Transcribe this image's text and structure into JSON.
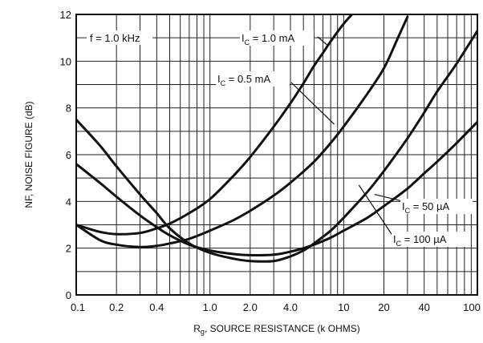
{
  "chart_data": {
    "type": "line",
    "title": "",
    "annotation": "f = 1.0 kHz",
    "xlabel": "Rg, SOURCE RESISTANCE (k OHMS)",
    "ylabel": "NF, NOISE FIGURE (dB)",
    "x_scale": "log",
    "xlim": [
      0.1,
      100
    ],
    "ylim": [
      0,
      12
    ],
    "grid": true,
    "x_tick_values": [
      0.1,
      0.2,
      0.4,
      1.0,
      2.0,
      4.0,
      10,
      20,
      40,
      100
    ],
    "x_tick_labels": [
      "0.1",
      "0.2",
      "0.4",
      "1.0",
      "2.0",
      "4.0",
      "10",
      "20",
      "40",
      "100"
    ],
    "y_tick_values": [
      0,
      2,
      4,
      6,
      8,
      10,
      12
    ],
    "y_tick_labels": [
      "0",
      "2",
      "4",
      "6",
      "8",
      "10",
      "12"
    ],
    "series": [
      {
        "name": "IC = 1.0 mA",
        "x": [
          0.1,
          0.15,
          0.2,
          0.3,
          0.4,
          0.5,
          0.7,
          1.0,
          1.5,
          2.0,
          3.0,
          4.0,
          5.0,
          6.0,
          7.0,
          8.0,
          10.0,
          12.0
        ],
        "y": [
          3.0,
          2.7,
          2.6,
          2.65,
          2.85,
          3.05,
          3.5,
          4.1,
          5.1,
          5.9,
          7.2,
          8.2,
          9.05,
          9.8,
          10.35,
          10.85,
          11.6,
          12.1
        ]
      },
      {
        "name": "IC = 0.5 mA",
        "x": [
          0.1,
          0.15,
          0.2,
          0.3,
          0.4,
          0.5,
          0.7,
          1.0,
          1.5,
          2.0,
          3.0,
          4.0,
          6.0,
          8.0,
          10.0,
          15.0,
          20.0,
          25.0,
          30.0
        ],
        "y": [
          3.0,
          2.35,
          2.15,
          2.05,
          2.1,
          2.2,
          2.4,
          2.75,
          3.2,
          3.6,
          4.25,
          4.8,
          5.7,
          6.5,
          7.2,
          8.6,
          9.7,
          10.9,
          11.9
        ]
      },
      {
        "name": "IC = 50 µA",
        "x": [
          0.1,
          0.15,
          0.2,
          0.3,
          0.4,
          0.5,
          0.7,
          1.0,
          1.5,
          2.0,
          3.0,
          4.0,
          5.0,
          6.0,
          8.0,
          10.0,
          15.0,
          20.0,
          30.0,
          40.0,
          50.0,
          70.0,
          100.0
        ],
        "y": [
          5.6,
          4.8,
          4.2,
          3.4,
          2.9,
          2.55,
          2.15,
          1.9,
          1.75,
          1.7,
          1.72,
          1.85,
          2.0,
          2.15,
          2.45,
          2.75,
          3.3,
          3.8,
          4.55,
          5.2,
          5.7,
          6.5,
          7.4
        ]
      },
      {
        "name": "IC = 100 µA",
        "x": [
          0.1,
          0.15,
          0.2,
          0.3,
          0.4,
          0.5,
          0.7,
          1.0,
          1.5,
          2.0,
          3.0,
          4.0,
          5.0,
          6.0,
          8.0,
          10.0,
          15.0,
          20.0,
          30.0,
          40.0,
          50.0,
          70.0,
          100.0
        ],
        "y": [
          7.5,
          6.4,
          5.5,
          4.3,
          3.5,
          2.85,
          2.2,
          1.8,
          1.55,
          1.45,
          1.45,
          1.65,
          1.9,
          2.2,
          2.75,
          3.3,
          4.4,
          5.3,
          6.7,
          7.8,
          8.7,
          9.9,
          11.3
        ]
      }
    ],
    "curve_labels": [
      {
        "prefix": "I",
        "sub": "C",
        "text": " = 1.0 mA"
      },
      {
        "prefix": "I",
        "sub": "C",
        "text": " = 0.5 mA"
      },
      {
        "prefix": "I",
        "sub": "C",
        "text": " = 50 µA"
      },
      {
        "prefix": "I",
        "sub": "C",
        "text": " = 100 µA"
      }
    ],
    "xlabel_parts": {
      "prefix": "R",
      "sub": "g",
      "text": ", SOURCE RESISTANCE (k OHMS)"
    }
  }
}
